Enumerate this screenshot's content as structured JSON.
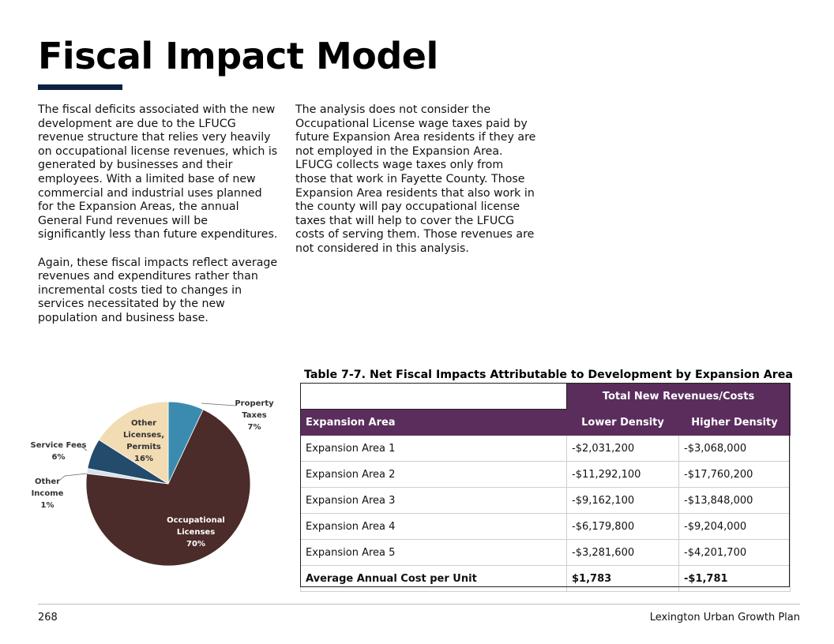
{
  "title": "Fiscal Impact Model",
  "col1": {
    "p1": "The fiscal deficits associated with the new development are due to the LFUCG revenue structure that relies very heavily on occupational license revenues, which is generated by businesses and their employees. With a limited base of new commercial and industrial uses planned for the Expansion Areas, the annual General Fund revenues will be significantly less than future expenditures.",
    "p2": "Again, these fiscal impacts reflect average revenues and expenditures rather than incremental costs tied to changes in services necessitated by the new population and business base."
  },
  "col2": {
    "p1": "The analysis does not consider the Occupational License wage taxes paid by future Expansion Area residents if they are not employed in the Expansion Area. LFUCG collects wage taxes only from those that work in Fayette County. Those Expansion Area residents that also work in the county will pay occupational license taxes that will help to cover the LFUCG costs of serving them. Those revenues are not considered in this analysis."
  },
  "chart_data": {
    "type": "pie",
    "title": "",
    "slices": [
      {
        "label_lines": [
          "Property",
          "Taxes"
        ],
        "pct_label": "7%",
        "value": 7,
        "color": "#3b8bb0"
      },
      {
        "label_lines": [
          "Occupational",
          "Licenses"
        ],
        "pct_label": "70%",
        "value": 70,
        "color": "#4b2c2a"
      },
      {
        "label_lines": [
          "Other",
          "Income"
        ],
        "pct_label": "1%",
        "value": 1,
        "color": "#d5e3ea"
      },
      {
        "label_lines": [
          "Service Fees"
        ],
        "pct_label": "6%",
        "value": 6,
        "color": "#234b6b"
      },
      {
        "label_lines": [
          "Other",
          "Licenses,",
          "Permits"
        ],
        "pct_label": "16%",
        "value": 16,
        "color": "#f1dcb4"
      }
    ]
  },
  "table": {
    "caption": "Table 7-7. Net Fiscal Impacts Attributable to Development by Expansion Area",
    "group_header": "Total New Revenues/Costs",
    "col_headers": [
      "Expansion Area",
      "Lower Density",
      "Higher Density"
    ],
    "rows": [
      [
        "Expansion Area 1",
        "-$2,031,200",
        "-$3,068,000"
      ],
      [
        "Expansion Area 2",
        "-$11,292,100",
        "-$17,760,200"
      ],
      [
        "Expansion Area 3",
        "-$9,162,100",
        "-$13,848,000"
      ],
      [
        "Expansion Area 4",
        "-$6,179,800",
        "-$9,204,000"
      ],
      [
        "Expansion Area 5",
        "-$3,281,600",
        "-$4,201,700"
      ]
    ],
    "total_row": [
      "Average Annual Cost per Unit",
      "$1,783",
      "-$1,781"
    ]
  },
  "footer": {
    "page_number": "268",
    "publication": "Lexington Urban Growth Plan"
  }
}
